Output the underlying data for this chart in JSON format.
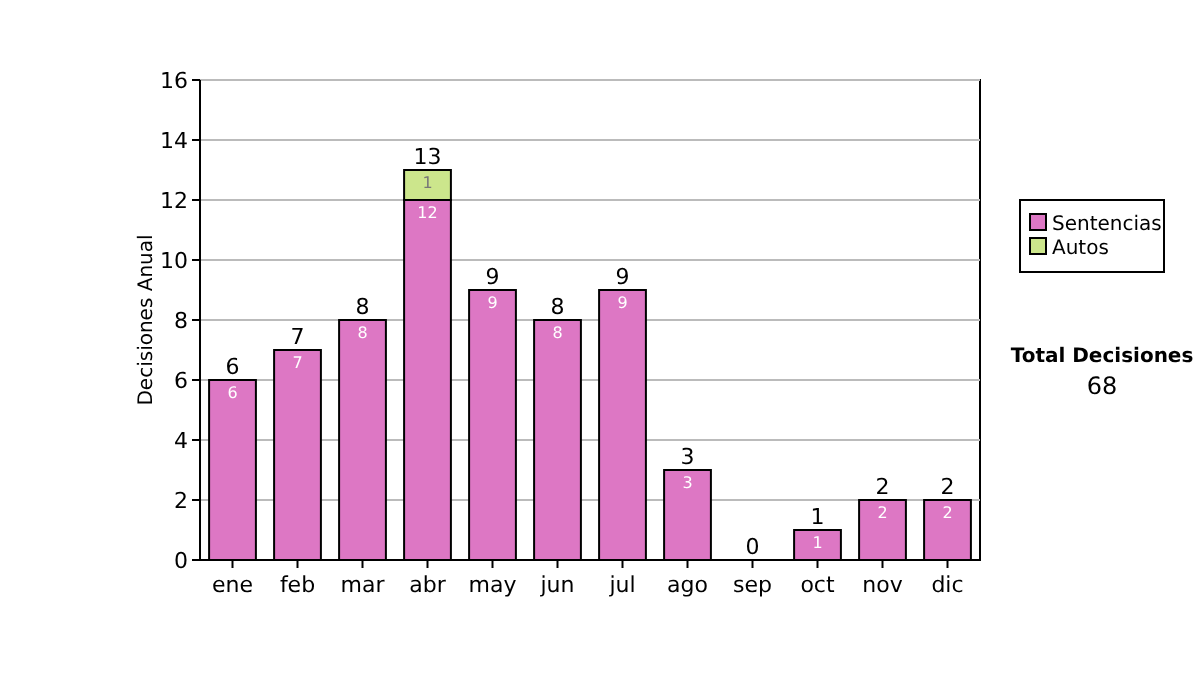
{
  "chart_data": {
    "type": "bar",
    "stacked": true,
    "ylabel": "Decisiones Anual",
    "categories": [
      "ene",
      "feb",
      "mar",
      "abr",
      "may",
      "jun",
      "jul",
      "ago",
      "sep",
      "oct",
      "nov",
      "dic"
    ],
    "series": [
      {
        "name": "Sentencias",
        "color": "#dd77c4",
        "values": [
          6,
          7,
          8,
          12,
          9,
          8,
          9,
          3,
          0,
          1,
          2,
          2
        ],
        "value_labels": [
          "6",
          "7",
          "8",
          "12",
          "9",
          "8",
          "9",
          "3",
          null,
          "1",
          "2",
          "2"
        ]
      },
      {
        "name": "Autos",
        "color": "#cce68c",
        "values": [
          0,
          0,
          0,
          1,
          0,
          0,
          0,
          0,
          0,
          0,
          0,
          0
        ],
        "value_labels": [
          null,
          null,
          null,
          "1",
          null,
          null,
          null,
          null,
          null,
          null,
          null,
          null
        ]
      }
    ],
    "totals": [
      "6",
      "7",
      "8",
      "13",
      "9",
      "8",
      "9",
      "3",
      "0",
      "1",
      "2",
      "2"
    ],
    "ylim": [
      0,
      16
    ],
    "yticks": [
      0,
      2,
      4,
      6,
      8,
      10,
      12,
      14,
      16
    ],
    "grid": "y",
    "legend": "right",
    "annotations": [
      "Total Decisiones",
      "68"
    ]
  }
}
